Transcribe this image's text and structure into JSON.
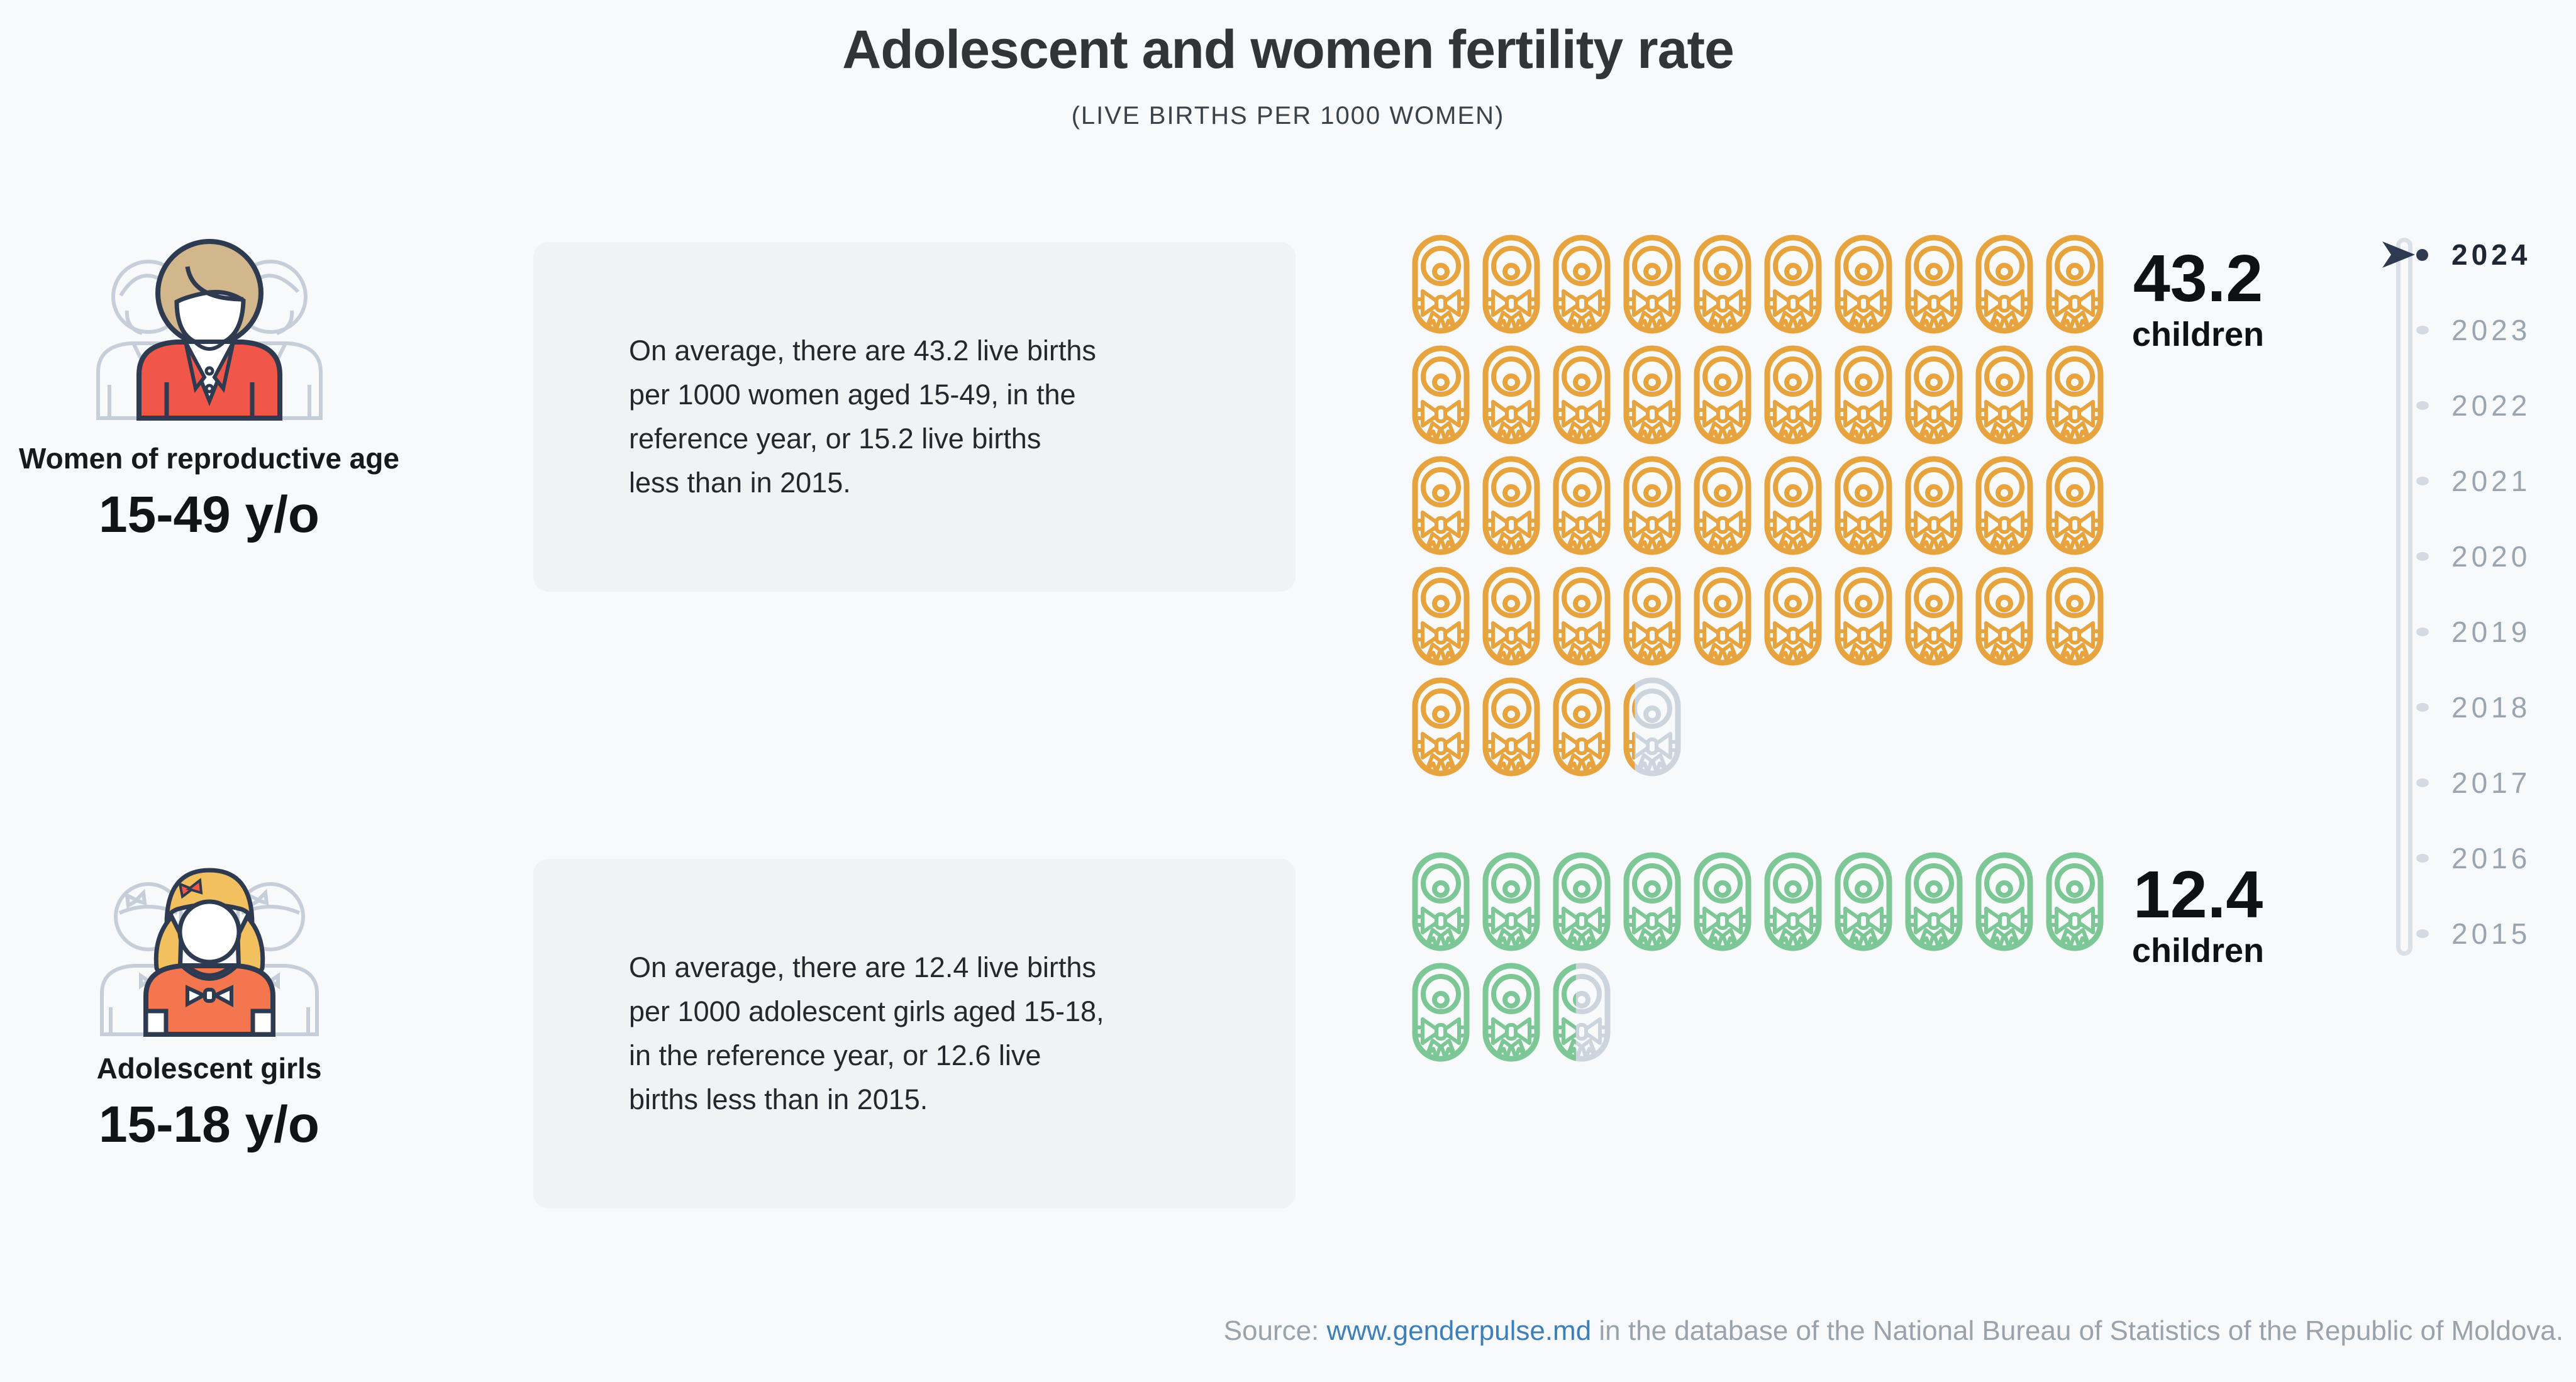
{
  "header": {
    "title": "Adolescent and women fertility rate",
    "subtitle": "(LIVE BIRTHS PER 1000 WOMEN)"
  },
  "groups": [
    {
      "id": "women",
      "label": "Women of reproductive age",
      "age_range": "15-49 y/o",
      "description_lines": [
        "On average, there are 43.2 live births",
        "per 1000 women aged 15-49, in the",
        "reference year, or 15.2 live births",
        "less than in 2015."
      ],
      "value": 43.2,
      "value_display": "43.2",
      "unit": "children",
      "icon_color": "#e7a33e"
    },
    {
      "id": "adolescent-girls",
      "label": "Adolescent girls",
      "age_range": "15-18 y/o",
      "description_lines": [
        "On average, there are 12.4 live births",
        "per 1000 adolescent girls aged 15-18,",
        "in the reference year, or 12.6 live",
        "births less than in 2015."
      ],
      "value": 12.4,
      "value_display": "12.4",
      "unit": "children",
      "icon_color": "#7cc795"
    }
  ],
  "timeline": {
    "years": [
      "2024",
      "2023",
      "2022",
      "2021",
      "2020",
      "2019",
      "2018",
      "2017",
      "2016",
      "2015"
    ],
    "selected": "2024"
  },
  "source": {
    "prefix": "Source: ",
    "link": "www.genderpulse.md",
    "suffix": " in the database of the National Bureau of Statistics of the Republic of Moldova."
  },
  "colors": {
    "page_bg": "#f8f9fa",
    "card_bg": "#f0f2f4",
    "women_icon": "#e7a33e",
    "girls_icon": "#7cc795",
    "icon_empty": "#ccd5de",
    "accent_navy": "#2e3a50",
    "link_blue": "#3d7fb7",
    "year_inactive": "#9aa5b2",
    "year_active": "#1f2735",
    "jacket_red": "#f15748",
    "shirt_orange": "#f4764f",
    "hair_tan": "#d2b68c",
    "hair_gold": "#f3c05f",
    "outline_gray": "#c6cfd9"
  },
  "chart_data": {
    "type": "pictogram",
    "title": "Adolescent and women fertility rate",
    "subtitle": "(LIVE BIRTHS PER 1000 WOMEN)",
    "unit": "live births per 1000 women",
    "icon_unit": "children",
    "icons_per_row": 10,
    "series": [
      {
        "name": "Women of reproductive age 15-49 y/o",
        "value": 43.2,
        "full_icons": 43,
        "partial_icon_fraction": 0.2,
        "color": "#e7a33e",
        "change_vs_2015": -15.2
      },
      {
        "name": "Adolescent girls 15-18 y/o",
        "value": 12.4,
        "full_icons": 12,
        "partial_icon_fraction": 0.4,
        "color": "#7cc795",
        "change_vs_2015": -12.6
      }
    ],
    "timeline_years": [
      "2024",
      "2023",
      "2022",
      "2021",
      "2020",
      "2019",
      "2018",
      "2017",
      "2016",
      "2015"
    ],
    "selected_year": "2024",
    "legend_position": "right-of-grid",
    "grid": false
  }
}
